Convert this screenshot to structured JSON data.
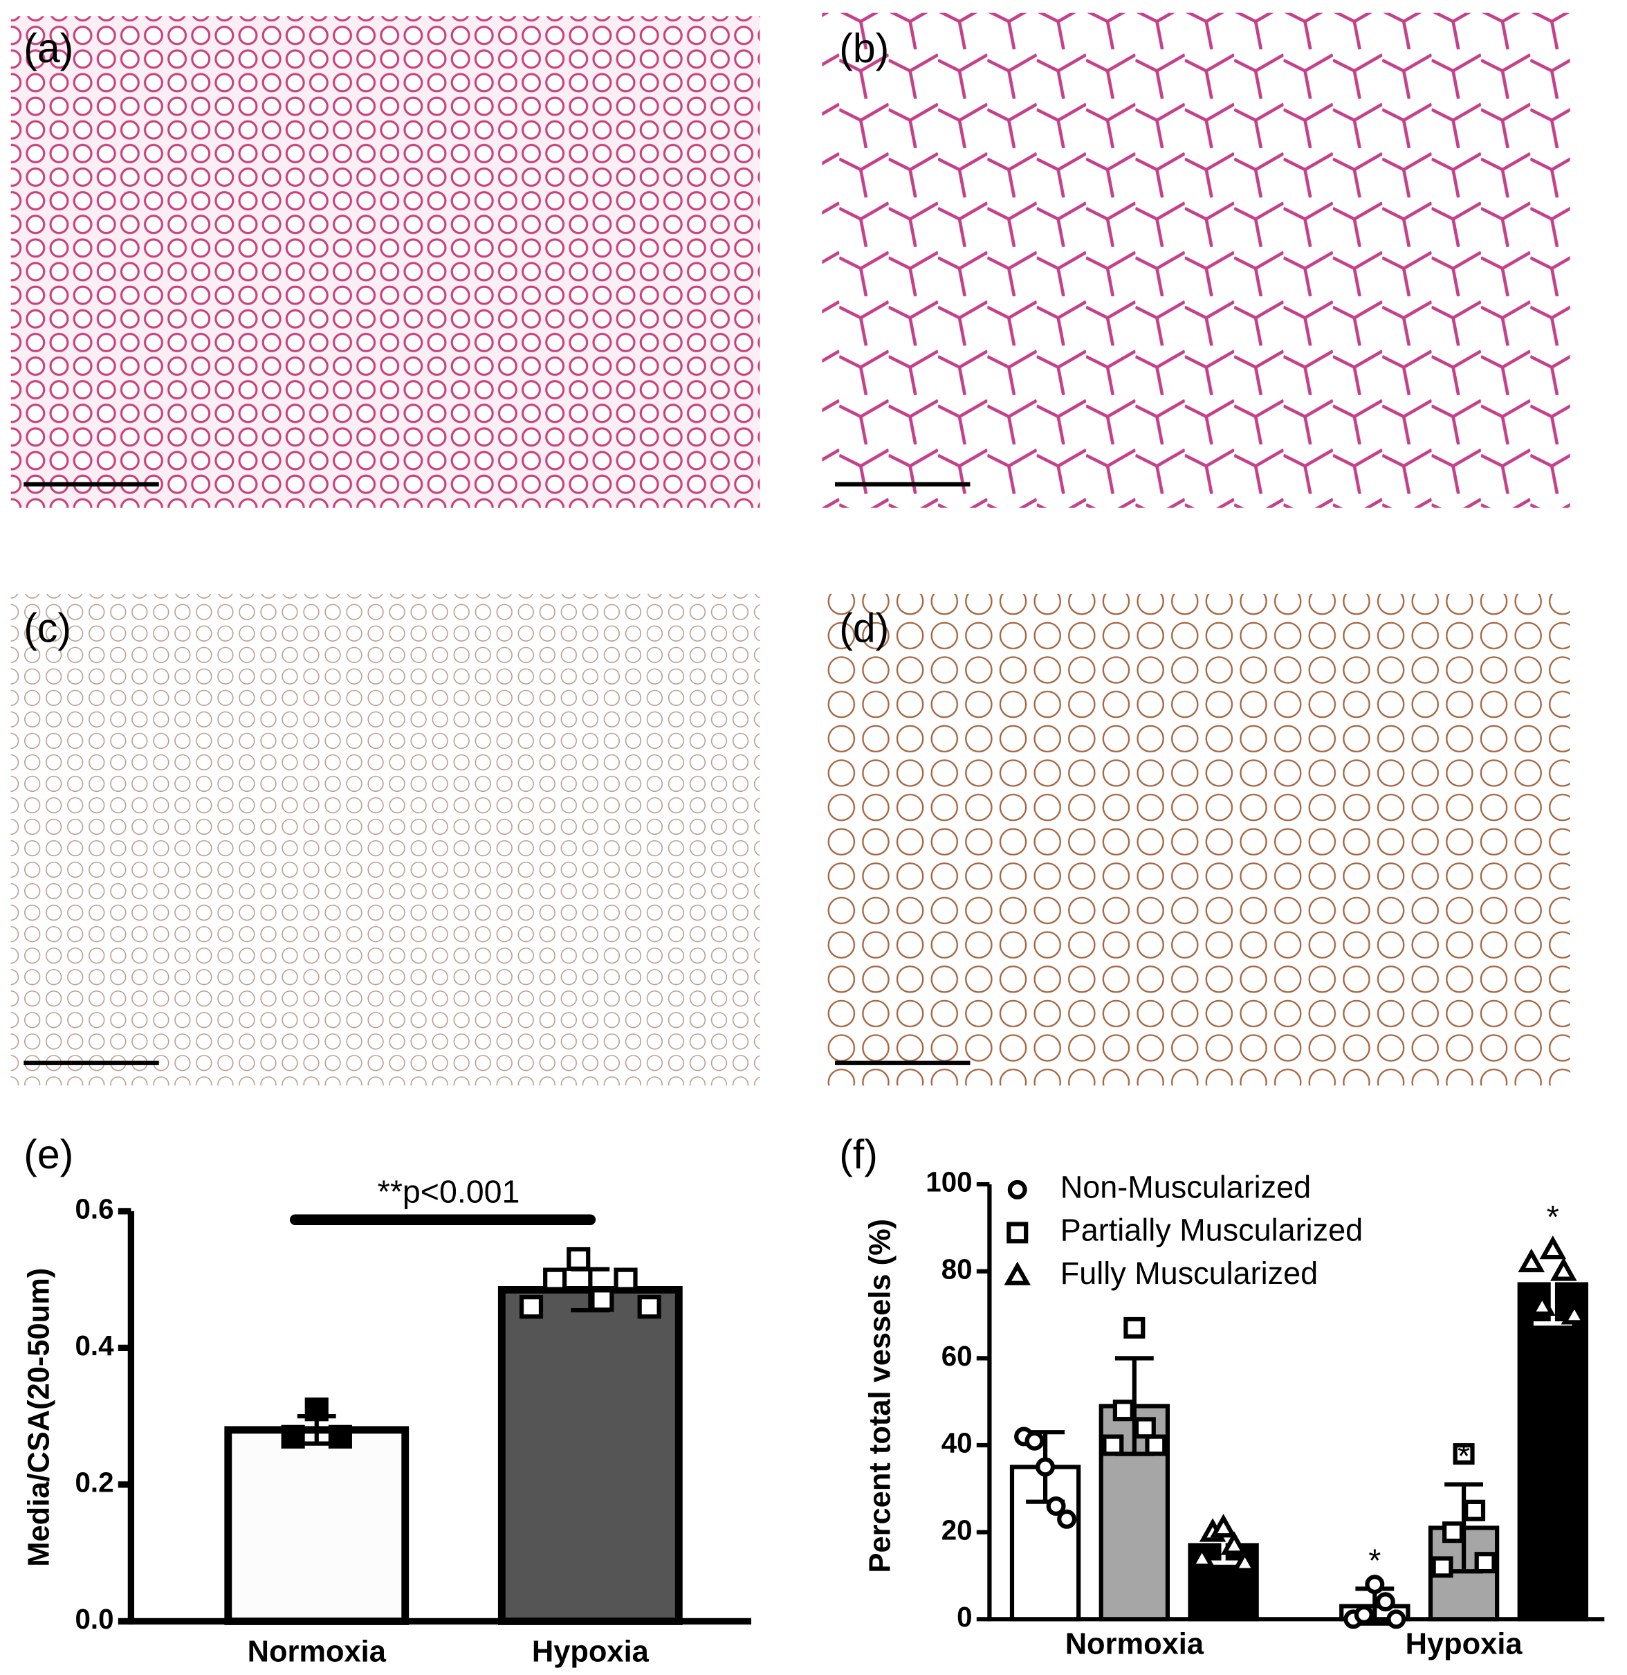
{
  "panels": [
    {
      "label": "(a)"
    },
    {
      "label": "(b)"
    },
    {
      "label": "(c)"
    },
    {
      "label": "(d)"
    }
  ],
  "chart_data": [
    {
      "type": "bar",
      "panel_label": "(e)",
      "ylabel": "Media/CSA(20-50um)",
      "annotation": "**p<0.001",
      "categories": [
        "Normoxia",
        "Hypoxia"
      ],
      "values": [
        0.28,
        0.485
      ],
      "errors": [
        0.02,
        0.03
      ],
      "colors": [
        "#fcfcfc",
        "#555555"
      ],
      "points": [
        [
          0.27,
          0.31,
          0.27
        ],
        [
          0.46,
          0.5,
          0.53,
          0.47,
          0.5,
          0.46
        ]
      ],
      "ylim": [
        0,
        0.6
      ],
      "yticks": [
        {
          "value": 0,
          "label": "0.0"
        },
        0.2,
        0.4,
        0.6
      ]
    },
    {
      "type": "grouped_bar",
      "panel_label": "(f)",
      "ylabel": "Percent total vessels (%)",
      "categories": [
        "Normoxia",
        "Hypoxia"
      ],
      "series": [
        {
          "name": "Non-Muscularized",
          "color": "#ffffff",
          "marker": "circle",
          "values": [
            35,
            3
          ],
          "errors": [
            8,
            4
          ],
          "points": [
            [
              42,
              41,
              35,
              26,
              23
            ],
            [
              0,
              1,
              8,
              4,
              0
            ]
          ],
          "significance": [
            null,
            "*"
          ]
        },
        {
          "name": "Partially Muscularized",
          "color": "#a6a6a6",
          "marker": "square",
          "values": [
            49,
            21
          ],
          "errors": [
            11,
            10
          ],
          "points": [
            [
              40,
              48,
              67,
              44,
              40
            ],
            [
              12,
              20,
              38,
              25,
              13
            ]
          ],
          "significance": [
            null,
            "*"
          ]
        },
        {
          "name": "Fully Muscularized",
          "color": "#000000",
          "marker": "triangle",
          "values": [
            17,
            77
          ],
          "errors": [
            4,
            9
          ],
          "points": [
            [
              14,
              20,
              21,
              17,
              13
            ],
            [
              82,
              72,
              85,
              80,
              70
            ]
          ],
          "significance": [
            null,
            "*"
          ]
        }
      ],
      "ylim": [
        0,
        100
      ],
      "yticks": [
        0,
        20,
        40,
        60,
        80,
        100
      ]
    }
  ]
}
